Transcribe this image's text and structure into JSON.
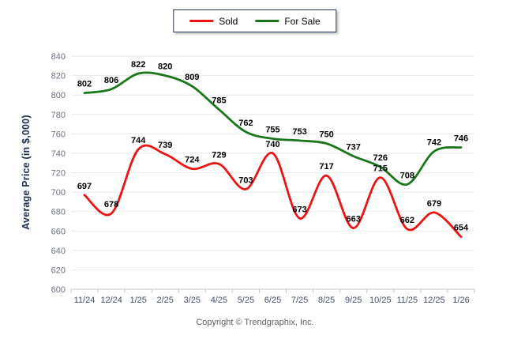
{
  "chart_data": {
    "type": "line",
    "categories": [
      "11/24",
      "12/24",
      "1/25",
      "2/25",
      "3/25",
      "4/25",
      "5/25",
      "6/25",
      "7/25",
      "8/25",
      "9/25",
      "10/25",
      "11/25",
      "12/25",
      "1/26"
    ],
    "series": [
      {
        "name": "Sold",
        "color": "#ee1313",
        "values": [
          697,
          678,
          744,
          739,
          724,
          729,
          703,
          740,
          673,
          717,
          663,
          715,
          662,
          679,
          654
        ]
      },
      {
        "name": "For Sale",
        "color": "#1b751b",
        "values": [
          802,
          806,
          822,
          820,
          809,
          785,
          762,
          755,
          753,
          750,
          737,
          726,
          708,
          742,
          746
        ]
      }
    ],
    "xlabel": "",
    "ylabel": "Average Price (in $,000)",
    "ylim": [
      600,
      840
    ],
    "ytick_step": 20,
    "grid": true,
    "legend_position": "top-center",
    "show_data_labels": true
  },
  "footer": {
    "copyright": "Copyright © Trendgraphix, Inc."
  },
  "colors": {
    "grid": "#e8e8e8",
    "axis_line": "#c3c3c3",
    "y_tick_label": "#6a7180",
    "x_tick_label": "#44506a",
    "data_label": "#000000",
    "legend_border": "#24355c",
    "y_title": "#1d3051",
    "footer_text": "#5f5f5f"
  }
}
